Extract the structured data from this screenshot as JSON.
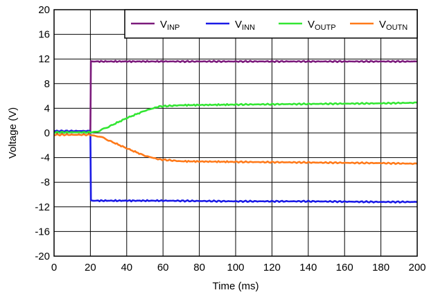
{
  "chart_data": {
    "type": "line",
    "xlabel": "Time (ms)",
    "ylabel": "Voltage (V)",
    "xlim": [
      0,
      200
    ],
    "ylim": [
      -20,
      20
    ],
    "x_ticks": [
      0,
      20,
      40,
      60,
      80,
      100,
      120,
      140,
      160,
      180,
      200
    ],
    "y_ticks": [
      20,
      16,
      12,
      8,
      4,
      0,
      -4,
      -8,
      -12,
      -16,
      -20
    ],
    "grid": true,
    "legend_position": "top-right",
    "series": [
      {
        "name": "VINP",
        "name_main": "V",
        "name_sub": "INP",
        "color": "#7b1a7b",
        "points": [
          [
            0,
            0.3
          ],
          [
            20,
            0.3
          ],
          [
            20.3,
            11.6
          ],
          [
            60,
            11.6
          ],
          [
            100,
            11.6
          ],
          [
            140,
            11.6
          ],
          [
            180,
            11.6
          ],
          [
            200,
            11.6
          ]
        ]
      },
      {
        "name": "VINN",
        "name_main": "V",
        "name_sub": "INN",
        "color": "#1a1ae6",
        "points": [
          [
            0,
            0.3
          ],
          [
            20,
            0.3
          ],
          [
            20.3,
            -11.0
          ],
          [
            60,
            -11.0
          ],
          [
            100,
            -11.1
          ],
          [
            140,
            -11.1
          ],
          [
            180,
            -11.2
          ],
          [
            200,
            -11.2
          ]
        ]
      },
      {
        "name": "VOUTP",
        "name_main": "V",
        "name_sub": "OUTP",
        "color": "#33e633",
        "points": [
          [
            0,
            0.1
          ],
          [
            20,
            0.1
          ],
          [
            25,
            0.3
          ],
          [
            30,
            1.0
          ],
          [
            40,
            2.4
          ],
          [
            50,
            3.6
          ],
          [
            58,
            4.3
          ],
          [
            70,
            4.5
          ],
          [
            100,
            4.6
          ],
          [
            140,
            4.7
          ],
          [
            180,
            4.8
          ],
          [
            200,
            4.9
          ]
        ]
      },
      {
        "name": "VOUTN",
        "name_main": "V",
        "name_sub": "OUTN",
        "color": "#ff7a1a",
        "points": [
          [
            0,
            -0.3
          ],
          [
            20,
            -0.3
          ],
          [
            25,
            -0.6
          ],
          [
            30,
            -1.2
          ],
          [
            40,
            -2.5
          ],
          [
            50,
            -3.7
          ],
          [
            58,
            -4.3
          ],
          [
            70,
            -4.6
          ],
          [
            100,
            -4.7
          ],
          [
            140,
            -4.8
          ],
          [
            180,
            -4.9
          ],
          [
            200,
            -5.0
          ]
        ]
      }
    ]
  }
}
